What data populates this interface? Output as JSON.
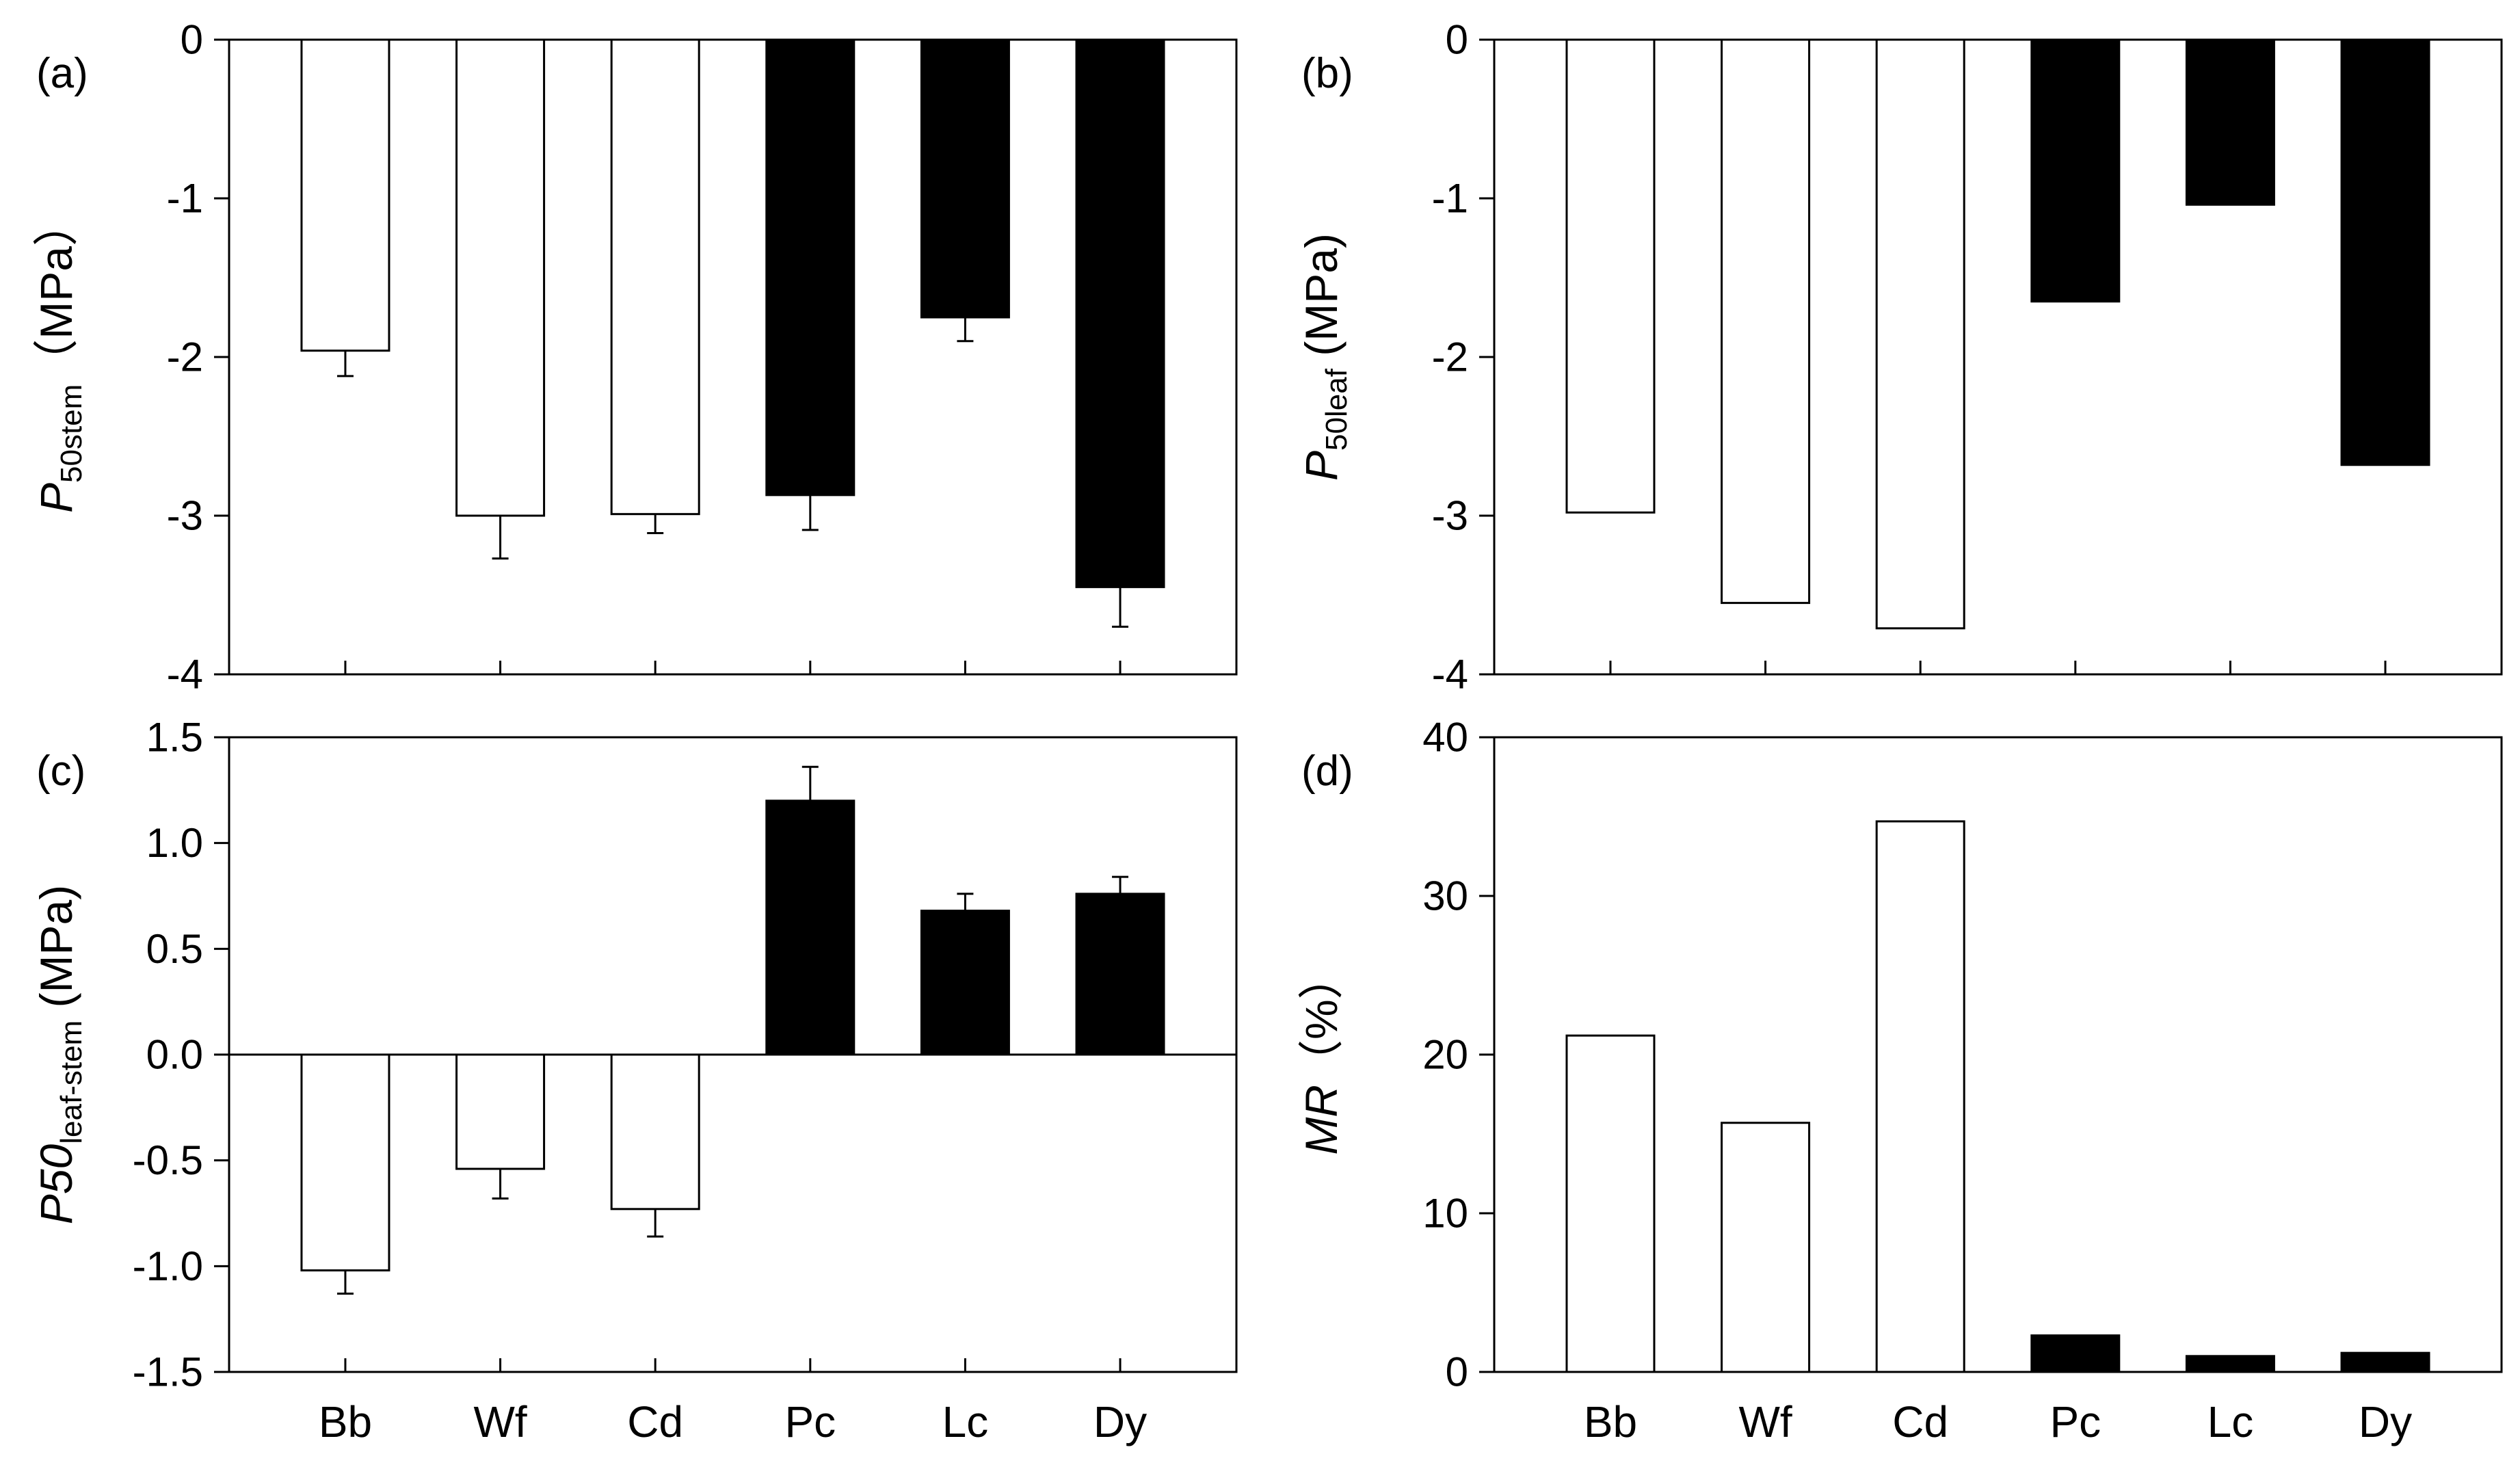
{
  "chart_data": [
    {
      "id": "a",
      "type": "bar",
      "panel_label": "(a)",
      "categories": [
        "Bb",
        "Wf",
        "Cd",
        "Pc",
        "Lc",
        "Dy"
      ],
      "values": [
        -1.96,
        -3.0,
        -2.99,
        -2.87,
        -1.75,
        -3.45
      ],
      "errors": [
        0.16,
        0.27,
        0.12,
        0.22,
        0.15,
        0.25
      ],
      "fill": [
        "open",
        "open",
        "open",
        "solid",
        "solid",
        "solid"
      ],
      "ylabel": {
        "main": "P",
        "sub": "50stem",
        "rest": "（MPa）"
      },
      "ylim": [
        -4,
        0
      ],
      "yticks": [
        "0",
        "-1",
        "-2",
        "-3",
        "-4"
      ],
      "ytick_values": [
        0,
        -1,
        -2,
        -3,
        -4
      ],
      "show_xtick_labels": false
    },
    {
      "id": "b",
      "type": "bar",
      "panel_label": "(b)",
      "categories": [
        "Bb",
        "Wf",
        "Cd",
        "Pc",
        "Lc",
        "Dy"
      ],
      "values": [
        -2.98,
        -3.55,
        -3.71,
        -1.65,
        -1.04,
        -2.68
      ],
      "errors": null,
      "fill": [
        "open",
        "open",
        "open",
        "solid",
        "solid",
        "solid"
      ],
      "ylabel": {
        "main": "P",
        "sub": "50leaf",
        "rest": " (MPa)"
      },
      "ylim": [
        -4,
        0
      ],
      "yticks": [
        "0",
        "-1",
        "-2",
        "-3",
        "-4"
      ],
      "ytick_values": [
        0,
        -1,
        -2,
        -3,
        -4
      ],
      "show_xtick_labels": false
    },
    {
      "id": "c",
      "type": "bar",
      "panel_label": "(c)",
      "categories": [
        "Bb",
        "Wf",
        "Cd",
        "Pc",
        "Lc",
        "Dy"
      ],
      "values": [
        -1.02,
        -0.54,
        -0.73,
        1.2,
        0.68,
        0.76
      ],
      "errors": [
        0.11,
        0.14,
        0.13,
        0.16,
        0.08,
        0.08
      ],
      "fill": [
        "open",
        "open",
        "open",
        "solid",
        "solid",
        "solid"
      ],
      "ylabel": {
        "main": "P50",
        "sub": "leaf-stem",
        "rest": " (MPa)"
      },
      "ylim": [
        -1.5,
        1.5
      ],
      "yticks": [
        "1.5",
        "1.0",
        "0.5",
        "0.0",
        "-0.5",
        "-1.0",
        "-1.5"
      ],
      "ytick_values": [
        1.5,
        1.0,
        0.5,
        0.0,
        -0.5,
        -1.0,
        -1.5
      ],
      "zero_line": true,
      "show_xtick_labels": true
    },
    {
      "id": "d",
      "type": "bar",
      "panel_label": "(d)",
      "categories": [
        "Bb",
        "Wf",
        "Cd",
        "Pc",
        "Lc",
        "Dy"
      ],
      "values": [
        21.2,
        15.7,
        34.7,
        2.3,
        1.0,
        1.2
      ],
      "errors": null,
      "fill": [
        "open",
        "open",
        "open",
        "solid",
        "solid",
        "solid"
      ],
      "ylabel": {
        "main": "MR",
        "sub": "",
        "rest": "（%）"
      },
      "ylim": [
        0,
        40
      ],
      "yticks": [
        "40",
        "30",
        "20",
        "10",
        "0"
      ],
      "ytick_values": [
        40,
        30,
        20,
        10,
        0
      ],
      "show_xtick_labels": true
    }
  ],
  "style": {
    "solid_color": "#000000",
    "open_color": "#ffffff",
    "axis_color": "#000000"
  }
}
